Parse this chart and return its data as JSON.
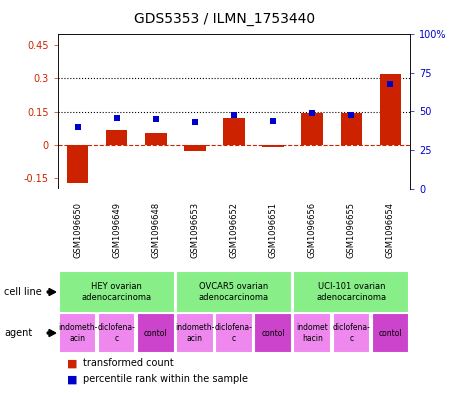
{
  "title": "GDS5353 / ILMN_1753440",
  "samples": [
    "GSM1096650",
    "GSM1096649",
    "GSM1096648",
    "GSM1096653",
    "GSM1096652",
    "GSM1096651",
    "GSM1096656",
    "GSM1096655",
    "GSM1096654"
  ],
  "bar_values": [
    -0.175,
    0.065,
    0.055,
    -0.03,
    0.12,
    -0.01,
    0.145,
    0.145,
    0.32
  ],
  "dot_values": [
    40,
    46,
    45,
    43,
    48,
    44,
    49,
    48,
    68
  ],
  "ylim_left": [
    -0.2,
    0.5
  ],
  "ylim_right": [
    0,
    100
  ],
  "yticks_left": [
    -0.15,
    0.0,
    0.15,
    0.3,
    0.45
  ],
  "yticks_right": [
    0,
    25,
    50,
    75,
    100
  ],
  "ytick_labels_left": [
    "-0.15",
    "0",
    "0.15",
    "0.3",
    "0.45"
  ],
  "ytick_labels_right": [
    "0",
    "25",
    "50",
    "75",
    "100%"
  ],
  "hlines": [
    0.15,
    0.3
  ],
  "bar_color": "#cc2200",
  "dot_color": "#0000cc",
  "dashed_line_color": "#cc2200",
  "cell_line_color": "#88ee88",
  "gsm_bg_color": "#cccccc",
  "agent_light_color": "#ee88ee",
  "agent_dark_color": "#cc44cc",
  "cell_line_groups": [
    {
      "label": "HEY ovarian\nadenocarcinoma",
      "span": [
        0,
        3
      ]
    },
    {
      "label": "OVCAR5 ovarian\nadenocarcinoma",
      "span": [
        3,
        6
      ]
    },
    {
      "label": "UCI-101 ovarian\nadenocarcinoma",
      "span": [
        6,
        9
      ]
    }
  ],
  "agent_groups": [
    {
      "label": "indometh-\nacin",
      "span": [
        0,
        1
      ],
      "dark": false
    },
    {
      "label": "diclofena-\nc",
      "span": [
        1,
        2
      ],
      "dark": false
    },
    {
      "label": "contol",
      "span": [
        2,
        3
      ],
      "dark": true
    },
    {
      "label": "indometh-\nacin",
      "span": [
        3,
        4
      ],
      "dark": false
    },
    {
      "label": "diclofena-\nc",
      "span": [
        4,
        5
      ],
      "dark": false
    },
    {
      "label": "contol",
      "span": [
        5,
        6
      ],
      "dark": true
    },
    {
      "label": "indomet\nhacin",
      "span": [
        6,
        7
      ],
      "dark": false
    },
    {
      "label": "diclofena-\nc",
      "span": [
        7,
        8
      ],
      "dark": false
    },
    {
      "label": "contol",
      "span": [
        8,
        9
      ],
      "dark": true
    }
  ],
  "legend_labels": [
    "transformed count",
    "percentile rank within the sample"
  ],
  "legend_colors": [
    "#cc2200",
    "#0000cc"
  ],
  "background_color": "#ffffff"
}
